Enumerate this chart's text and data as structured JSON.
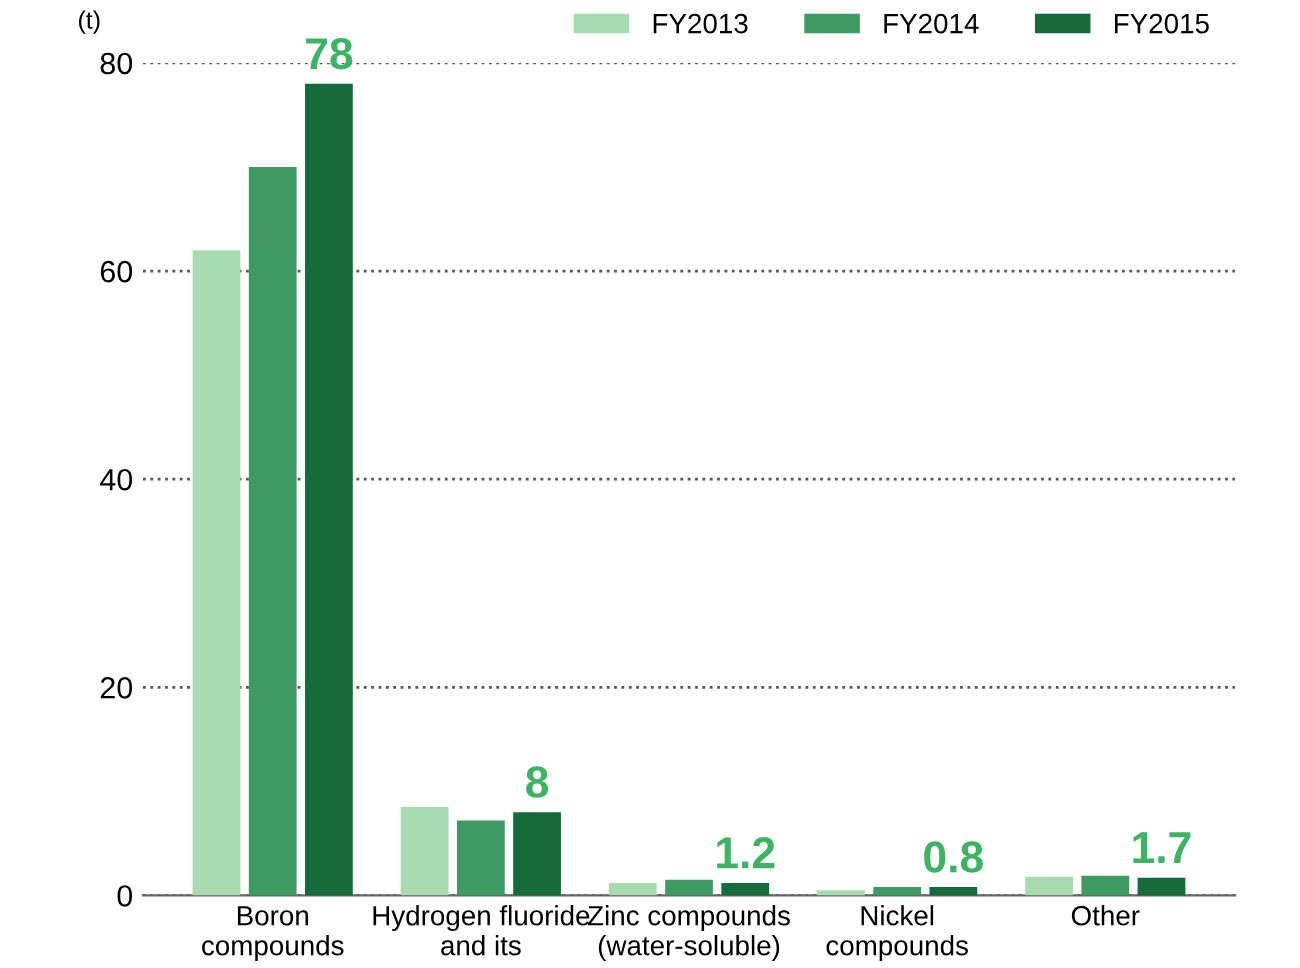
{
  "chart_data": {
    "type": "bar",
    "ylabel": "(t)",
    "categories": [
      "Boron\ncompounds",
      "Hydrogen fluoride\nand its",
      "Zinc compounds\n(water-soluble)",
      "Nickel\ncompounds",
      "Other"
    ],
    "series": [
      {
        "name": "FY2013",
        "color": "#a8dcb0",
        "values": [
          62,
          8.5,
          1.2,
          0.5,
          1.8
        ]
      },
      {
        "name": "FY2014",
        "color": "#3f9a62",
        "values": [
          70,
          7.2,
          1.5,
          0.8,
          1.9
        ]
      },
      {
        "name": "FY2015",
        "color": "#166b3a",
        "values": [
          78,
          8,
          1.2,
          0.8,
          1.7
        ],
        "value_labels": [
          "78",
          "8",
          "1.2",
          "0.8",
          "1.7"
        ]
      }
    ],
    "ylim": [
      0,
      80
    ],
    "yticks": [
      0,
      20,
      40,
      60,
      80
    ],
    "grid": "y",
    "legend": "top right"
  }
}
